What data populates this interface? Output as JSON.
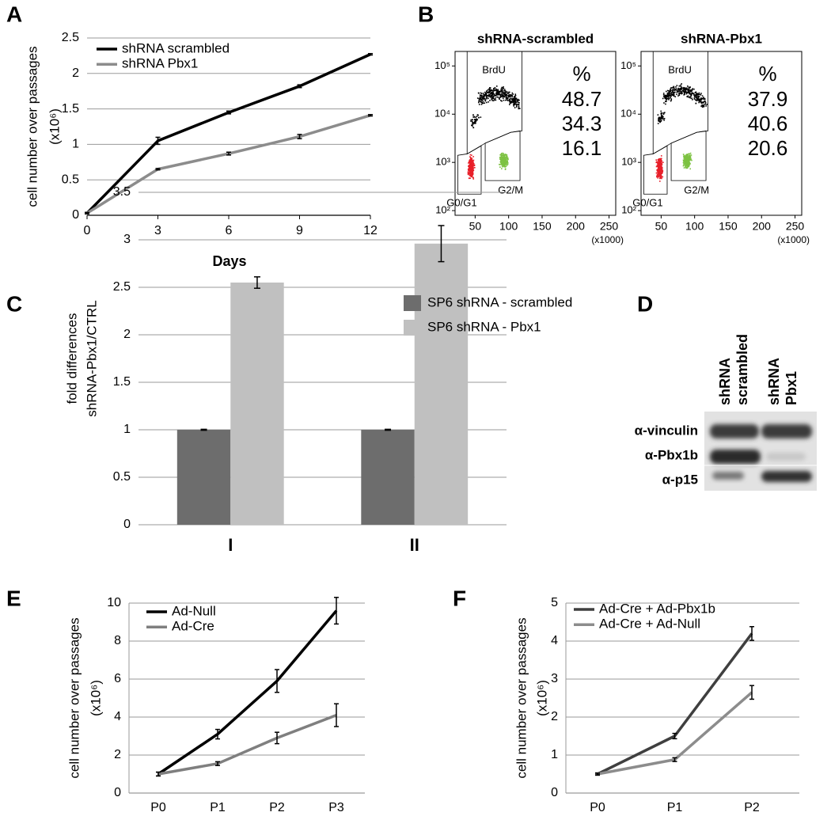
{
  "chart_data": [
    {
      "type": "line",
      "panel": "A",
      "ylabel": "cell number over passages",
      "ylabel_unit": "(x10⁶)",
      "xlabel": "Days",
      "x": [
        0,
        3,
        6,
        9,
        12
      ],
      "xlim": [
        0,
        12
      ],
      "xticks": [
        0,
        3,
        6,
        9,
        12
      ],
      "ylim": [
        0,
        2.5
      ],
      "yticks": [
        0,
        0.5,
        1,
        1.5,
        2,
        2.5
      ],
      "grid": true,
      "legend": "upper left",
      "series": [
        {
          "name": "shRNA scrambled",
          "color": "#000000",
          "values": [
            0.03,
            1.05,
            1.45,
            1.82,
            2.27
          ],
          "errors": [
            0.01,
            0.05,
            0.02,
            0.02,
            0.01
          ]
        },
        {
          "name": "shRNA Pbx1",
          "color": "#8c8c8c",
          "values": [
            0.03,
            0.65,
            0.87,
            1.11,
            1.41
          ],
          "errors": [
            0.01,
            0.01,
            0.02,
            0.03,
            0.01
          ]
        }
      ]
    },
    {
      "type": "flow",
      "panel": "B",
      "xlim": [
        20,
        260
      ],
      "xticks": [
        50,
        100,
        150,
        200,
        250
      ],
      "xunit": "(x1000)",
      "ylim": [
        80,
        200000
      ],
      "log_y": true,
      "yticks": [
        {
          "value": 100,
          "label": "10²"
        },
        {
          "value": 1000,
          "label": "10³"
        },
        {
          "value": 10000,
          "label": "10⁴"
        },
        {
          "value": 100000,
          "label": "10⁵"
        }
      ],
      "percent_header": "%",
      "plots": [
        {
          "title": "shRNA-scrambled",
          "gates": [
            {
              "label": "BrdU",
              "percent": 48.7,
              "color": "#000000"
            },
            {
              "label": "G0/G1",
              "percent": 34.3,
              "color": "#e8202a"
            },
            {
              "label": "G2/M",
              "percent": 16.1,
              "color": "#7dc242"
            }
          ]
        },
        {
          "title": "shRNA-Pbx1",
          "gates": [
            {
              "label": "BrdU",
              "percent": 37.9,
              "color": "#000000"
            },
            {
              "label": "G0/G1",
              "percent": 40.6,
              "color": "#e8202a"
            },
            {
              "label": "G2/M",
              "percent": 20.6,
              "color": "#7dc242"
            }
          ]
        }
      ]
    },
    {
      "type": "bar",
      "panel": "C",
      "ylabel": "fold differences",
      "ylabel_unit": "shRNA-Pbx1/CTRL",
      "categories": [
        "I",
        "II"
      ],
      "ylim": [
        0,
        3.5
      ],
      "yticks": [
        0,
        0.5,
        1,
        1.5,
        2,
        2.5,
        3,
        3.5
      ],
      "grid": true,
      "legend": "upper right",
      "series": [
        {
          "name": "SP6 shRNA - scrambled",
          "color": "#6d6d6d",
          "values": [
            1,
            1
          ],
          "errors": [
            0.005,
            0.005
          ]
        },
        {
          "name": "SP6 shRNA - Pbx1",
          "color": "#c0c0c0",
          "values": [
            2.55,
            2.96
          ],
          "errors": [
            0.06,
            0.19
          ]
        }
      ]
    },
    {
      "type": "line",
      "panel": "E",
      "ylabel": "cell number over passages",
      "ylabel_unit": "(x10⁶)",
      "categories": [
        "P0",
        "P1",
        "P2",
        "P3"
      ],
      "ylim": [
        0,
        10
      ],
      "yticks": [
        0,
        2,
        4,
        6,
        8,
        10
      ],
      "grid": true,
      "legend": "upper left",
      "series": [
        {
          "name": "Ad-Null",
          "color": "#000000",
          "values": [
            1,
            3.1,
            5.9,
            9.6
          ],
          "errors": [
            0.1,
            0.25,
            0.6,
            0.7
          ]
        },
        {
          "name": "Ad-Cre",
          "color": "#7f7f7f",
          "values": [
            1,
            1.55,
            2.9,
            4.1
          ],
          "errors": [
            0.1,
            0.1,
            0.3,
            0.6
          ]
        }
      ]
    },
    {
      "type": "line",
      "panel": "F",
      "ylabel": "cell number over passages",
      "ylabel_unit": "(x10⁶)",
      "categories": [
        "P0",
        "P1",
        "P2"
      ],
      "ylim": [
        0,
        5
      ],
      "yticks": [
        0,
        1,
        2,
        3,
        4,
        5
      ],
      "grid": true,
      "legend": "upper left",
      "series": [
        {
          "name": "Ad-Cre + Ad-Pbx1b",
          "color": "#3f3f3f",
          "values": [
            0.5,
            1.5,
            4.2
          ],
          "errors": [
            0.03,
            0.07,
            0.18
          ]
        },
        {
          "name": "Ad-Cre + Ad-Null",
          "color": "#8c8c8c",
          "values": [
            0.5,
            0.88,
            2.65
          ],
          "errors": [
            0.02,
            0.05,
            0.18
          ]
        }
      ]
    }
  ],
  "blot": {
    "panel": "D",
    "lanes": [
      [
        "shRNA",
        "scrambled"
      ],
      [
        "shRNA",
        "Pbx1"
      ]
    ],
    "rows": [
      "α-vinculin",
      "α-Pbx1b",
      "α-p15"
    ]
  }
}
